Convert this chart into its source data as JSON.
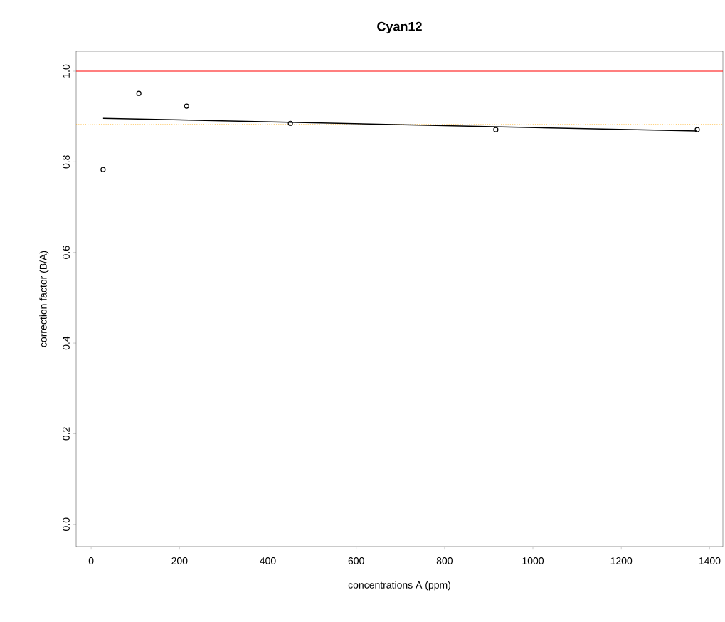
{
  "chart_data": {
    "type": "scatter",
    "title": "Cyan12",
    "xlabel": "concentrations A (ppm)",
    "ylabel": "correction factor (B/A)",
    "x": [
      27,
      108,
      216,
      451,
      916,
      1372
    ],
    "series": [
      {
        "color": "#000000",
        "values": [
          0.783,
          0.951,
          0.923,
          0.885,
          0.871,
          0.871
        ],
        "marker": "circle"
      },
      {
        "type": "line",
        "color": "#000000",
        "x": [
          27,
          1372
        ],
        "values": [
          0.896,
          0.868
        ],
        "marker": "none",
        "line_style": "solid"
      }
    ],
    "ref_lines": [
      {
        "axis": "y",
        "value": 1.0,
        "color": "#ff0000",
        "line_style": "solid"
      },
      {
        "axis": "y",
        "value": 0.882,
        "color": "#ffa500",
        "line_style": "dotted"
      }
    ],
    "xlim": [
      -34,
      1430
    ],
    "ylim": [
      -0.049,
      1.044
    ],
    "xticks": [
      0,
      200,
      400,
      600,
      800,
      1000,
      1200,
      1400
    ],
    "yticks": [
      {
        "value": 0,
        "label": "0.0"
      },
      0.2,
      0.4,
      0.6,
      0.8,
      {
        "value": 1,
        "label": "1.0"
      }
    ],
    "grid": false
  }
}
